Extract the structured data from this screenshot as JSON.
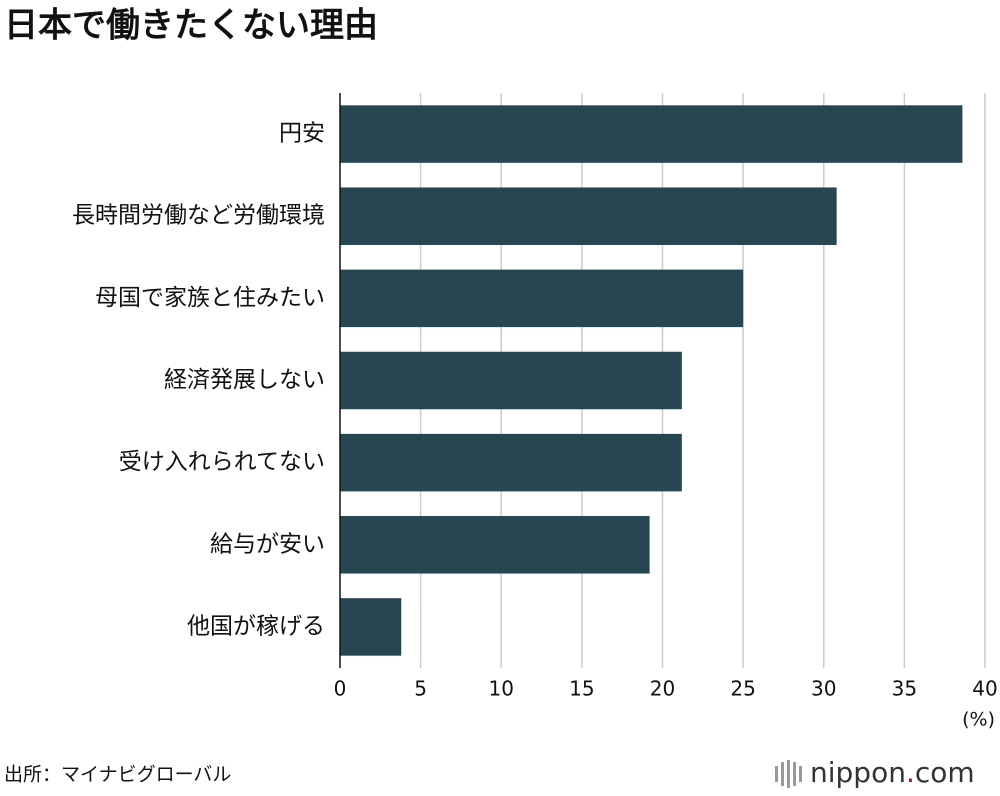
{
  "chart_data": {
    "type": "bar",
    "orientation": "horizontal",
    "title": "日本で働きたくない理由",
    "categories": [
      "円安",
      "長時間労働など労働環境",
      "母国で家族と住みたい",
      "経済発展しない",
      "受け入れられてない",
      "給与が安い",
      "他国が稼げる"
    ],
    "values": [
      38.6,
      30.8,
      25.0,
      21.2,
      21.2,
      19.2,
      3.8
    ],
    "color": "#284652",
    "xlim": [
      0,
      40
    ],
    "xticks": [
      0,
      5,
      10,
      15,
      20,
      25,
      30,
      35,
      40
    ],
    "xlabel": "(%)",
    "grid": true
  },
  "source": "出所：マイナビグローバル",
  "logo": {
    "name": "nippon",
    "dot": ".",
    "tld": "com"
  }
}
